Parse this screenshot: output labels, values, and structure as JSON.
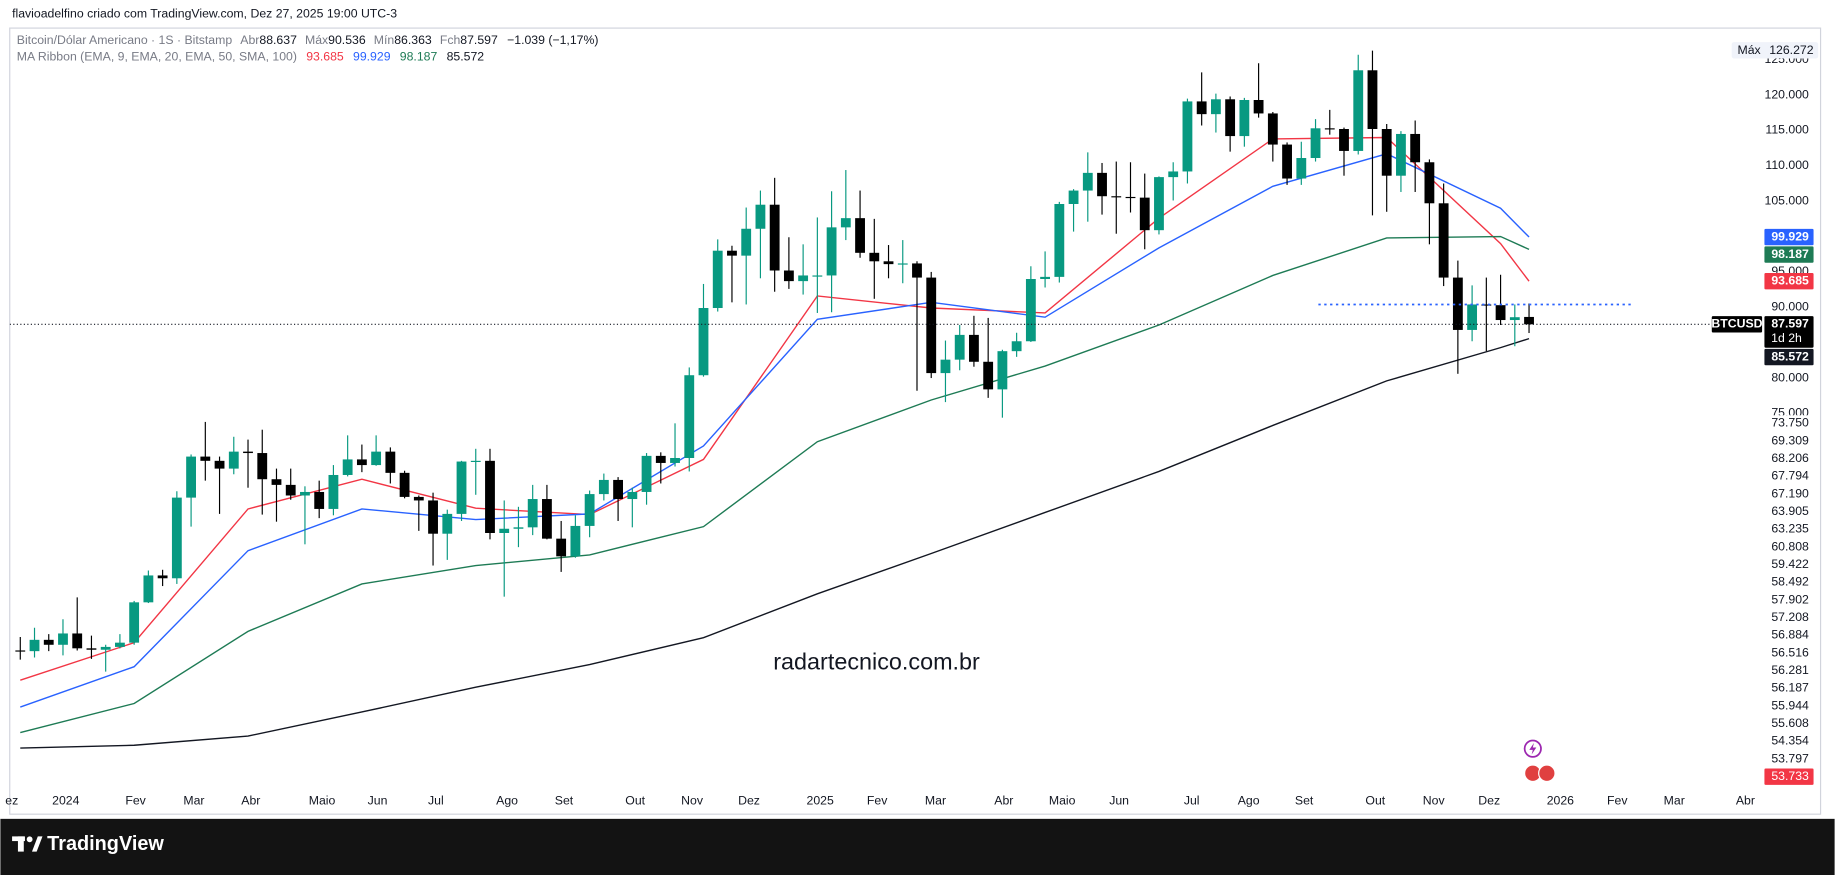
{
  "attribution": "flavioadelfino criado com TradingView.com, Dez 27, 2025 19:00 UTC-3",
  "footer": {
    "brand": "TradingView"
  },
  "chart_data": {
    "type": "candlestick",
    "symbol_label": "Bitcoin/Dólar Americano · 1S · Bitstamp",
    "ohlc_labels": [
      "Abr",
      "Máx",
      "Mín",
      "Fch"
    ],
    "change_label": "−1.039 (−1,17%)",
    "indicator_label": "MA Ribbon (EMA, 9, EMA, 20, EMA, 50, SMA, 100)",
    "watermark": "radartecnico.com.br",
    "symbol": "BTCUSD",
    "countdown": "1d 2h",
    "max_label": "Máx",
    "up_color": "#089981",
    "down_color": "#000000",
    "candles": {
      "open": [
        41.5,
        41.4,
        43.0,
        42.3,
        43.9,
        41.8,
        41.6,
        42.0,
        42.6,
        48.3,
        52.1,
        51.7,
        63.1,
        68.9,
        68.3,
        67.2,
        69.6,
        69.4,
        65.7,
        64.9,
        63.4,
        63.9,
        61.5,
        66.3,
        68.5,
        67.7,
        69.6,
        66.6,
        63.2,
        62.7,
        58.0,
        60.8,
        68.2,
        68.3,
        58.1,
        58.7,
        58.9,
        62.9,
        57.3,
        54.8,
        59.1,
        63.6,
        65.6,
        62.9,
        63.9,
        69.0,
        68.0,
        68.7,
        80.4,
        89.9,
        98.0,
        97.3,
        101.1,
        104.5,
        95.2,
        93.7,
        94.5,
        94.5,
        101.3,
        102.6,
        97.7,
        96.5,
        96.1,
        96.2,
        94.2,
        80.7,
        82.6,
        86.1,
        82.3,
        78.4,
        83.8,
        85.2,
        94.0,
        94.3,
        104.6,
        106.5,
        109.0,
        105.7,
        105.6,
        105.5,
        100.9,
        108.4,
        109.2,
        119.1,
        117.3,
        119.4,
        114.2,
        119.3,
        117.4,
        113.0,
        108.2,
        111.1,
        115.3,
        115.2,
        112.1,
        123.5,
        115.2,
        108.6,
        114.5,
        110.5,
        104.7,
        94.2,
        86.8,
        90.4,
        90.3,
        88.2,
        88.637
      ],
      "high": [
        43.4,
        44.7,
        43.8,
        45.9,
        49.0,
        43.6,
        42.3,
        43.8,
        48.5,
        52.8,
        52.9,
        64.0,
        69.2,
        73.8,
        68.9,
        71.7,
        71.3,
        72.7,
        67.2,
        67.2,
        64.7,
        65.5,
        67.7,
        71.9,
        70.6,
        71.9,
        70.2,
        66.9,
        63.4,
        63.8,
        61.4,
        68.3,
        70.0,
        70.0,
        62.7,
        61.8,
        64.9,
        64.9,
        59.8,
        60.6,
        64.1,
        66.5,
        66.0,
        64.5,
        69.4,
        69.5,
        73.6,
        81.5,
        93.3,
        99.6,
        98.7,
        104.1,
        106.5,
        108.3,
        99.9,
        98.9,
        102.7,
        106.4,
        109.4,
        106.5,
        102.5,
        98.8,
        99.5,
        96.5,
        95.0,
        85.3,
        87.5,
        88.8,
        88.5,
        84.0,
        86.4,
        95.8,
        97.9,
        104.9,
        106.7,
        111.9,
        110.4,
        110.6,
        110.5,
        108.9,
        108.5,
        110.5,
        119.5,
        123.2,
        120.2,
        119.8,
        119.6,
        124.5,
        117.6,
        113.3,
        113.4,
        116.6,
        117.9,
        115.4,
        125.7,
        126.272,
        115.9,
        114.9,
        116.4,
        110.9,
        107.5,
        96.6,
        93.1,
        94.2,
        94.6,
        90.4,
        90.536
      ],
      "low": [
        40.2,
        40.5,
        41.4,
        40.8,
        41.5,
        40.3,
        38.5,
        41.8,
        42.3,
        48.2,
        50.6,
        50.9,
        59.0,
        65.5,
        60.8,
        66.4,
        64.5,
        60.7,
        59.7,
        62.8,
        56.5,
        60.2,
        60.6,
        66.1,
        66.7,
        67.6,
        65.1,
        63.0,
        58.4,
        53.5,
        54.3,
        59.8,
        63.5,
        57.2,
        49.1,
        56.1,
        57.8,
        57.2,
        52.6,
        54.6,
        57.5,
        62.7,
        59.8,
        58.9,
        62.1,
        65.1,
        67.5,
        66.8,
        80.2,
        89.4,
        90.7,
        90.4,
        94.1,
        92.2,
        92.6,
        91.8,
        89.2,
        89.3,
        99.5,
        97.0,
        91.2,
        94.1,
        93.4,
        78.2,
        80.0,
        76.6,
        81.1,
        81.6,
        77.2,
        74.4,
        83.0,
        85.1,
        92.8,
        93.5,
        100.7,
        102.1,
        103.1,
        100.4,
        103.4,
        98.2,
        100.3,
        105.1,
        107.5,
        115.7,
        114.7,
        112.0,
        112.7,
        116.8,
        110.6,
        107.3,
        107.3,
        110.6,
        114.4,
        108.6,
        111.6,
        103.0,
        103.5,
        106.3,
        106.3,
        98.9,
        93.0,
        80.6,
        85.2,
        83.8,
        87.5,
        84.5,
        86.363
      ],
      "close": [
        41.4,
        43.0,
        42.3,
        43.9,
        41.8,
        41.6,
        42.0,
        42.6,
        48.3,
        52.1,
        51.7,
        63.1,
        68.9,
        68.3,
        67.2,
        69.6,
        69.4,
        65.7,
        64.9,
        63.4,
        63.9,
        61.5,
        66.3,
        68.5,
        67.7,
        69.6,
        66.6,
        63.2,
        62.7,
        58.0,
        60.8,
        68.2,
        68.3,
        58.1,
        58.7,
        58.9,
        62.9,
        57.3,
        54.8,
        59.1,
        63.6,
        65.6,
        62.9,
        63.9,
        69.0,
        68.0,
        68.7,
        80.4,
        89.9,
        98.0,
        97.3,
        101.1,
        104.5,
        95.2,
        93.7,
        94.5,
        94.5,
        101.3,
        102.6,
        97.7,
        96.5,
        96.1,
        96.2,
        94.2,
        80.7,
        82.6,
        86.1,
        82.3,
        78.4,
        83.8,
        85.2,
        94.0,
        94.3,
        104.6,
        106.5,
        109.0,
        105.7,
        105.6,
        105.5,
        100.9,
        108.4,
        109.2,
        119.1,
        117.3,
        119.4,
        114.2,
        119.3,
        117.4,
        113.0,
        108.2,
        111.1,
        115.3,
        115.2,
        112.1,
        123.5,
        115.2,
        108.6,
        114.5,
        110.5,
        104.7,
        94.2,
        86.8,
        90.4,
        90.3,
        88.2,
        88.6,
        87.597
      ]
    },
    "series": [
      {
        "color": "#f23645",
        "x": [
          0,
          8,
          16,
          24,
          32,
          40,
          48,
          56,
          64,
          72,
          80,
          88,
          96,
          104,
          106
        ],
        "values": [
          37.3,
          42.6,
          61.5,
          65.7,
          61.6,
          60.7,
          68.5,
          91.6,
          89.9,
          89.2,
          102.6,
          113.8,
          114.0,
          99.0,
          93.685
        ]
      },
      {
        "color": "#2962ff",
        "x": [
          0,
          8,
          16,
          24,
          32,
          40,
          48,
          56,
          64,
          72,
          80,
          88,
          96,
          104,
          106
        ],
        "values": [
          33.5,
          39.2,
          55.6,
          61.5,
          60.0,
          60.8,
          70.4,
          88.3,
          90.7,
          88.6,
          98.4,
          107.1,
          111.7,
          104.0,
          99.929
        ]
      },
      {
        "color": "#1e7b55",
        "x": [
          0,
          8,
          16,
          24,
          32,
          40,
          48,
          56,
          64,
          72,
          80,
          88,
          96,
          104,
          106
        ],
        "values": [
          29.9,
          34.0,
          44.2,
          50.9,
          53.5,
          55.0,
          59.0,
          71.0,
          76.9,
          81.7,
          87.5,
          94.5,
          99.8,
          100.0,
          98.187
        ]
      },
      {
        "color": "#131722",
        "x": [
          0,
          8,
          16,
          24,
          32,
          40,
          48,
          56,
          64,
          72,
          80,
          88,
          96,
          104,
          106
        ],
        "values": [
          27.7,
          28.1,
          29.4,
          32.8,
          36.3,
          39.5,
          43.3,
          49.5,
          55.2,
          61.0,
          66.8,
          73.3,
          79.6,
          84.3,
          85.572
        ]
      }
    ],
    "hline": {
      "value": 90.4,
      "x": [
        91.2,
        113.2
      ],
      "color": "#2962ff"
    },
    "xlim": [
      -0.74,
      126.4
    ],
    "xticks": [
      {
        "value": -0.6,
        "label": "ez"
      },
      {
        "value": 3.2,
        "label": "2024"
      },
      {
        "value": 8.1,
        "label": "Fev"
      },
      {
        "value": 12.2,
        "label": "Mar"
      },
      {
        "value": 16.2,
        "label": "Abr"
      },
      {
        "value": 21.2,
        "label": "Maio"
      },
      {
        "value": 25.1,
        "label": "Jun"
      },
      {
        "value": 29.2,
        "label": "Jul"
      },
      {
        "value": 34.2,
        "label": "Ago"
      },
      {
        "value": 38.2,
        "label": "Set"
      },
      {
        "value": 43.2,
        "label": "Out"
      },
      {
        "value": 47.2,
        "label": "Nov"
      },
      {
        "value": 51.2,
        "label": "Dez"
      },
      {
        "value": 56.2,
        "label": "2025"
      },
      {
        "value": 60.2,
        "label": "Fev"
      },
      {
        "value": 64.3,
        "label": "Mar"
      },
      {
        "value": 69.1,
        "label": "Abr"
      },
      {
        "value": 73.2,
        "label": "Maio"
      },
      {
        "value": 77.2,
        "label": "Jun"
      },
      {
        "value": 82.3,
        "label": "Jul"
      },
      {
        "value": 86.3,
        "label": "Ago"
      },
      {
        "value": 90.2,
        "label": "Set"
      },
      {
        "value": 95.2,
        "label": "Out"
      },
      {
        "value": 99.3,
        "label": "Nov"
      },
      {
        "value": 103.2,
        "label": "Dez"
      },
      {
        "value": 108.2,
        "label": "2026"
      },
      {
        "value": 112.2,
        "label": "Fev"
      },
      {
        "value": 116.2,
        "label": "Mar"
      },
      {
        "value": 121.2,
        "label": "Abr"
      }
    ],
    "ylim": [
      21.5,
      129.3
    ],
    "yticks": [
      {
        "value": 75,
        "label": "75.000"
      },
      {
        "value": 80,
        "label": "80.000"
      },
      {
        "value": 85,
        "label": "85.000"
      },
      {
        "value": 90,
        "label": "90.000"
      },
      {
        "value": 95,
        "label": "95.000"
      },
      {
        "value": 100,
        "label": "100.000"
      },
      {
        "value": 105,
        "label": "105.000"
      },
      {
        "value": 110,
        "label": "110.000"
      },
      {
        "value": 115,
        "label": "115.000"
      },
      {
        "value": 120,
        "label": "120.000"
      },
      {
        "value": 125,
        "label": "125.000"
      }
    ],
    "grid": false,
    "price_labels": [
      "73.750",
      "69.309",
      "68.206",
      "67.794",
      "67.190",
      "63.905",
      "63.235",
      "60.808",
      "59.422",
      "58.492",
      "57.902",
      "57.208",
      "56.884",
      "56.516",
      "56.281",
      "56.187",
      "55.944",
      "55.608",
      "54.354",
      "53.797",
      "53.733"
    ]
  }
}
